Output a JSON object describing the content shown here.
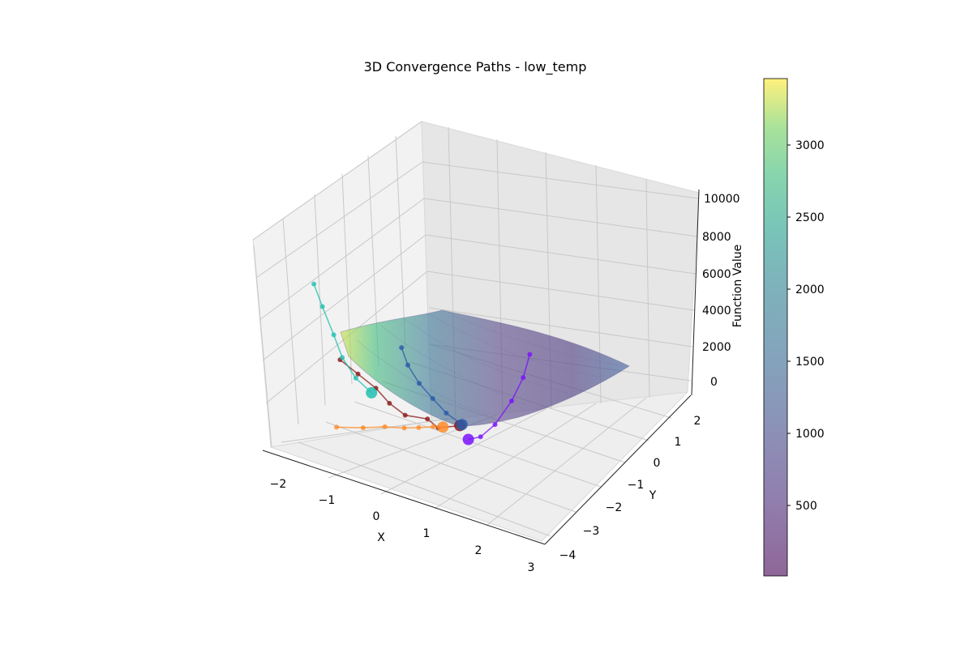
{
  "chart_data": {
    "type": "scatter",
    "subtype": "3d-surface-with-paths",
    "title": "3D Convergence Paths - low_temp",
    "xlabel": "X",
    "ylabel": "Y",
    "zlabel": "Function Value",
    "xlim": [
      -2.3,
      3.0
    ],
    "ylim": [
      -4.2,
      2.3
    ],
    "zlim": [
      -500,
      10200
    ],
    "x_ticks": [
      "−2",
      "−1",
      "0",
      "1",
      "2",
      "3"
    ],
    "y_ticks": [
      "−4",
      "−3",
      "−2",
      "−1",
      "0",
      "1",
      "2"
    ],
    "z_ticks": [
      "0",
      "2000",
      "4000",
      "6000",
      "8000",
      "10000"
    ],
    "colorbar": {
      "ticks": [
        "500",
        "1000",
        "1500",
        "2000",
        "2500",
        "3000"
      ],
      "range": [
        0,
        3450
      ],
      "colormap": "viridis",
      "alpha": 0.6
    },
    "grid": true,
    "series": [
      {
        "color": "#8b1a1a",
        "points": [
          [
            -1.0,
            0.2,
            900
          ],
          [
            -0.6,
            0.1,
            600
          ],
          [
            -0.2,
            0.0,
            300
          ],
          [
            0.2,
            -0.3,
            200
          ],
          [
            0.6,
            -0.5,
            150
          ],
          [
            1.0,
            -0.4,
            180
          ],
          [
            1.3,
            -0.6,
            200
          ],
          [
            1.6,
            -0.3,
            220
          ]
        ]
      },
      {
        "color": "#ff8c2a",
        "points": [
          [
            -0.2,
            -1.8,
            400
          ],
          [
            0.2,
            -1.5,
            350
          ],
          [
            0.5,
            -1.2,
            300
          ],
          [
            0.8,
            -1.0,
            250
          ],
          [
            1.0,
            -0.8,
            200
          ],
          [
            1.2,
            -0.6,
            180
          ],
          [
            1.35,
            -0.5,
            170
          ]
        ]
      },
      {
        "color": "#7a12ff",
        "points": [
          [
            2.6,
            0.6,
            3900
          ],
          [
            2.6,
            0.3,
            3000
          ],
          [
            2.5,
            0.0,
            2000
          ],
          [
            2.3,
            -0.3,
            900
          ],
          [
            2.1,
            -0.5,
            300
          ],
          [
            1.9,
            -0.6,
            100
          ]
        ]
      },
      {
        "color": "#22c0b0",
        "points": [
          [
            -2.0,
            1.3,
            2800
          ],
          [
            -1.7,
            1.0,
            2200
          ],
          [
            -1.3,
            0.6,
            1500
          ],
          [
            -1.0,
            0.3,
            900
          ],
          [
            -0.6,
            0.0,
            500
          ],
          [
            -0.2,
            -0.2,
            300
          ]
        ]
      },
      {
        "color": "#2a5aa8",
        "points": [
          [
            -0.3,
            1.4,
            700
          ],
          [
            0.0,
            1.0,
            500
          ],
          [
            0.4,
            0.6,
            350
          ],
          [
            0.8,
            0.3,
            250
          ],
          [
            1.2,
            0.0,
            180
          ],
          [
            1.6,
            -0.2,
            150
          ]
        ]
      }
    ]
  }
}
